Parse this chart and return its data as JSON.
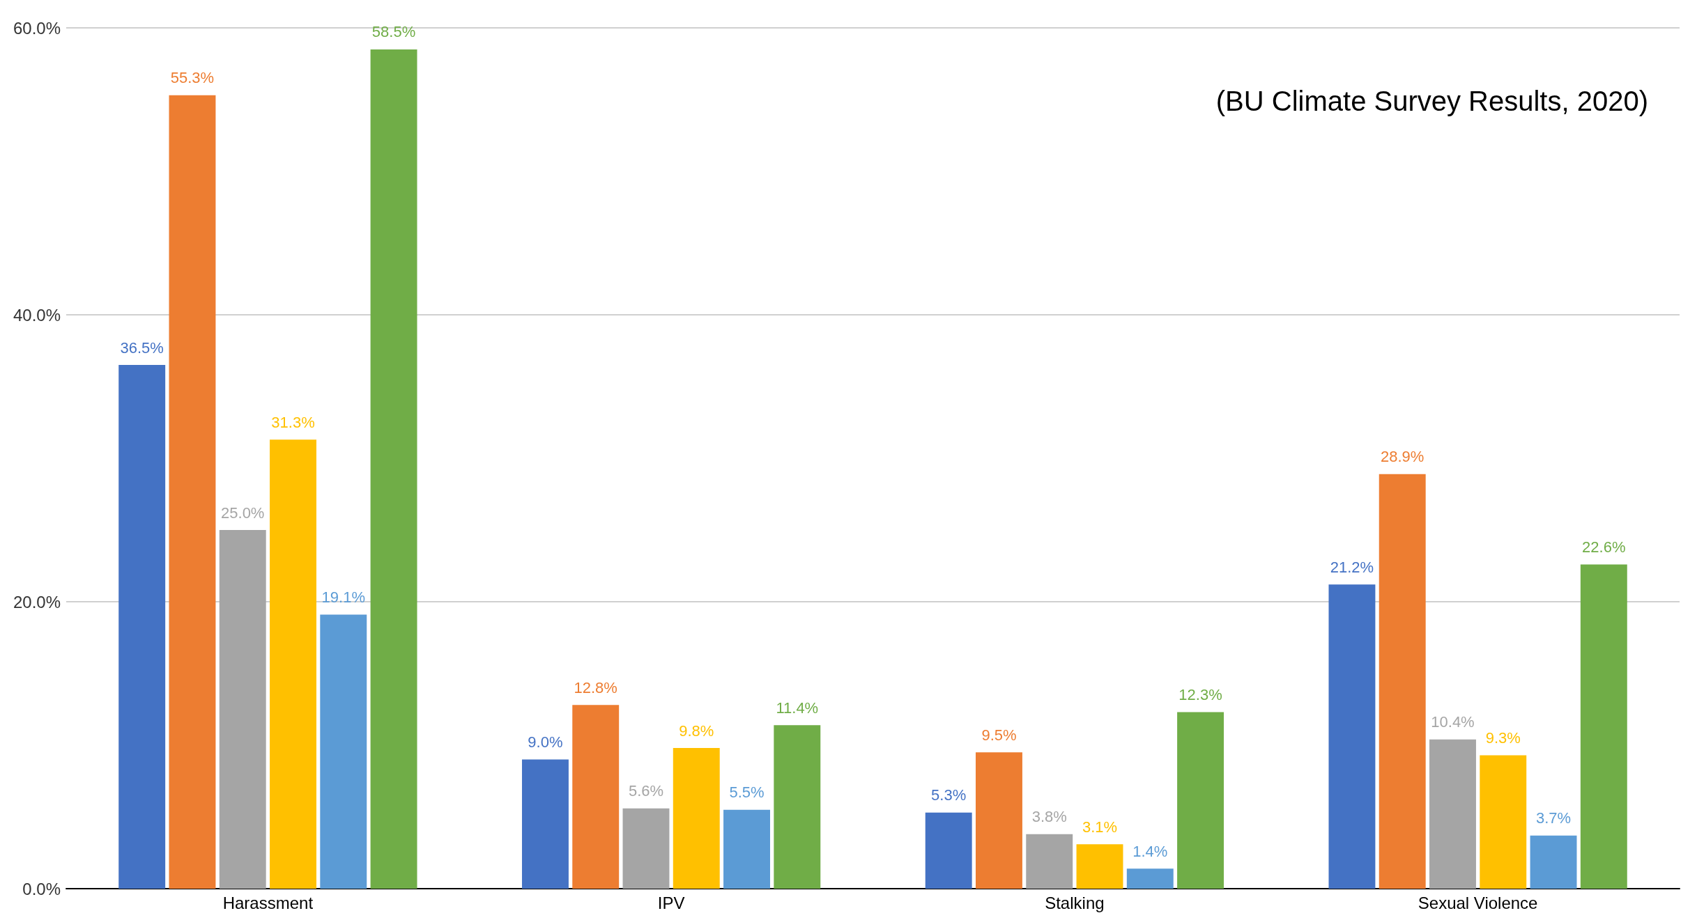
{
  "chart_data": {
    "type": "bar",
    "categories": [
      "Harassment",
      "IPV",
      "Stalking",
      "Sexual Violence"
    ],
    "series": [
      {
        "color": "#4472c4",
        "values": [
          36.5,
          9.0,
          5.3,
          21.2
        ],
        "value_labels": [
          "36.5%",
          "9.0%",
          "5.3%",
          "21.2%"
        ]
      },
      {
        "color": "#ed7d31",
        "values": [
          55.3,
          12.8,
          9.5,
          28.9
        ],
        "value_labels": [
          "55.3%",
          "12.8%",
          "9.5%",
          "28.9%"
        ]
      },
      {
        "color": "#a5a5a5",
        "values": [
          25.0,
          5.6,
          3.8,
          10.4
        ],
        "value_labels": [
          "25.0%",
          "5.6%",
          "3.8%",
          "10.4%"
        ]
      },
      {
        "color": "#ffc000",
        "values": [
          31.3,
          9.8,
          3.1,
          9.3
        ],
        "value_labels": [
          "31.3%",
          "9.8%",
          "3.1%",
          "9.3%"
        ]
      },
      {
        "color": "#5b9bd5",
        "values": [
          19.1,
          5.5,
          1.4,
          3.7
        ],
        "value_labels": [
          "19.1%",
          "5.5%",
          "1.4%",
          "3.7%"
        ]
      },
      {
        "color": "#70ad47",
        "values": [
          58.5,
          11.4,
          12.3,
          22.6
        ],
        "value_labels": [
          "58.5%",
          "11.4%",
          "12.3%",
          "22.6%"
        ]
      }
    ],
    "ylim": [
      0,
      60
    ],
    "yticks": [
      {
        "value": 0,
        "label": "0.0%"
      },
      {
        "value": 20,
        "label": "20.0%"
      },
      {
        "value": 40,
        "label": "40.0%"
      },
      {
        "value": 60,
        "label": "60.0%"
      }
    ],
    "grid": "y",
    "annotations": [
      "(BU Climate Survey Results, 2020)"
    ]
  }
}
